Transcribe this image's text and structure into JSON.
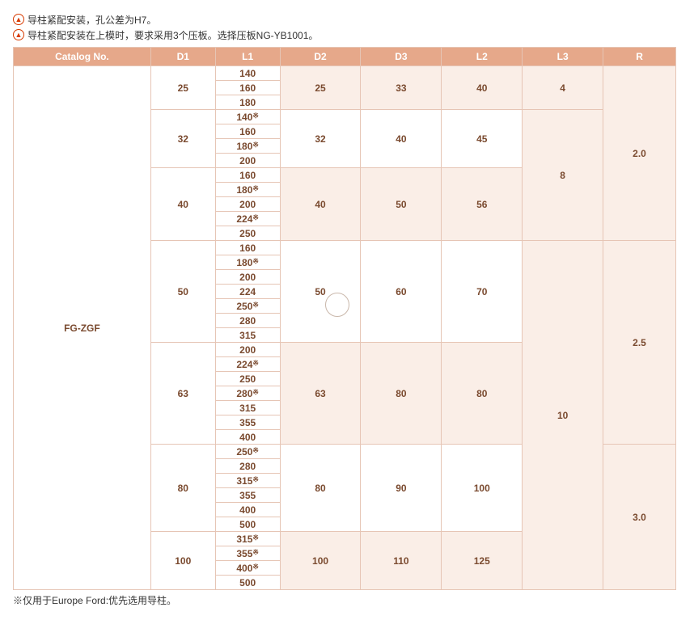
{
  "notes": {
    "icon": "▲",
    "line1": "导柱紧配安装，孔公差为H7。",
    "line2": "导柱紧配安装在上模时，要求采用3个压板。选择压板NG-YB1001。"
  },
  "headers": {
    "catalog": "Catalog No.",
    "d1": "D1",
    "l1": "L1",
    "d2": "D2",
    "d3": "D3",
    "l2": "L2",
    "l3": "L3",
    "r": "R"
  },
  "catalogNo": "FG-ZGF",
  "col_widths": {
    "catalog": 170,
    "d1": 80,
    "l1": 80,
    "d2": 100,
    "d3": 100,
    "l2": 100,
    "l3": 100,
    "r": 90
  },
  "groups": [
    {
      "d1": "25",
      "d2": "25",
      "d3": "33",
      "l2": "40",
      "shade": true,
      "l1": [
        "140",
        "160",
        "180"
      ],
      "sup": [
        false,
        false,
        false
      ]
    },
    {
      "d1": "32",
      "d2": "32",
      "d3": "40",
      "l2": "45",
      "shade": false,
      "l1": [
        "140",
        "160",
        "180",
        "200"
      ],
      "sup": [
        true,
        false,
        true,
        false
      ]
    },
    {
      "d1": "40",
      "d2": "40",
      "d3": "50",
      "l2": "56",
      "shade": true,
      "l1": [
        "160",
        "180",
        "200",
        "224",
        "250"
      ],
      "sup": [
        false,
        true,
        false,
        true,
        false
      ]
    },
    {
      "d1": "50",
      "d2": "50",
      "d3": "60",
      "l2": "70",
      "shade": false,
      "l1": [
        "160",
        "180",
        "200",
        "224",
        "250",
        "280",
        "315"
      ],
      "sup": [
        false,
        true,
        false,
        false,
        true,
        false,
        false
      ]
    },
    {
      "d1": "63",
      "d2": "63",
      "d3": "80",
      "l2": "80",
      "shade": true,
      "l1": [
        "200",
        "224",
        "250",
        "280",
        "315",
        "355",
        "400"
      ],
      "sup": [
        false,
        true,
        false,
        true,
        false,
        false,
        false
      ]
    },
    {
      "d1": "80",
      "d2": "80",
      "d3": "90",
      "l2": "100",
      "shade": false,
      "l1": [
        "250",
        "280",
        "315",
        "355",
        "400",
        "500"
      ],
      "sup": [
        true,
        false,
        true,
        false,
        false,
        false
      ]
    },
    {
      "d1": "100",
      "d2": "100",
      "d3": "110",
      "l2": "125",
      "shade": true,
      "l1": [
        "315",
        "355",
        "400",
        "500"
      ],
      "sup": [
        true,
        true,
        true,
        false
      ]
    }
  ],
  "l3": {
    "val4": "4",
    "val8": "8",
    "val10": "10"
  },
  "r": {
    "val20": "2.0",
    "val25": "2.5",
    "val30": "3.0"
  },
  "footnote": "※仅用于Europe Ford:优先选用导柱。",
  "sup_mark": "※"
}
